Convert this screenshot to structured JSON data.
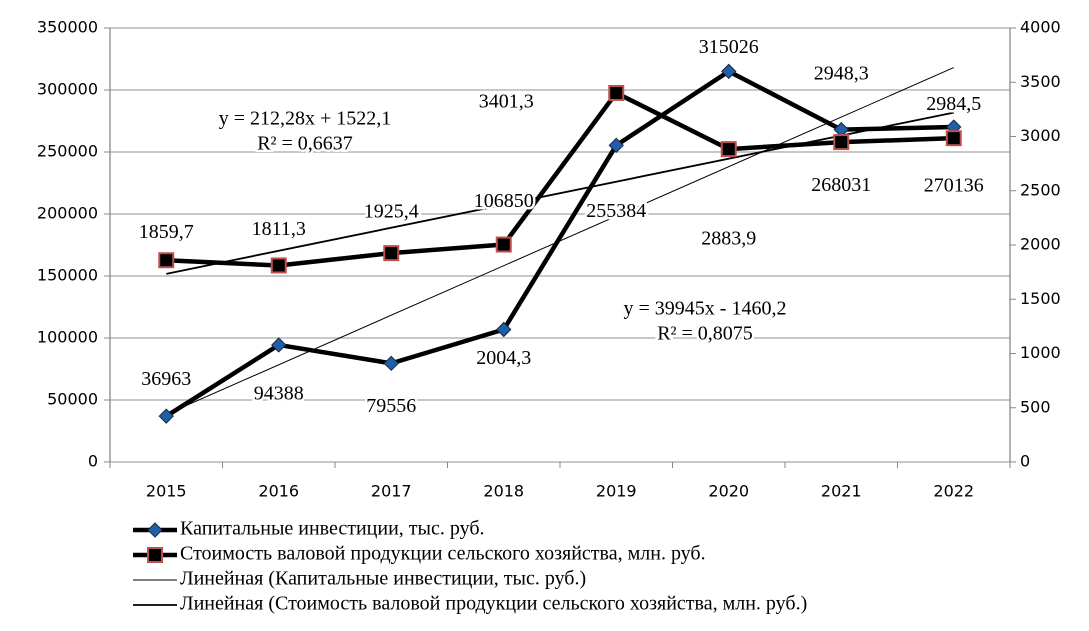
{
  "chart_data": {
    "type": "line",
    "categories": [
      "2015",
      "2016",
      "2017",
      "2018",
      "2019",
      "2020",
      "2021",
      "2022"
    ],
    "series": [
      {
        "name": "Капитальные инвестиции, тыс. руб.",
        "color": "#000000",
        "marker_color": "#1f5fa8",
        "marker": "diamond",
        "values": [
          36963,
          94388,
          79556,
          106850,
          255384,
          315026,
          268031,
          270136
        ]
      },
      {
        "name": "Стоимость валовой продукции сельского хозяйства, млн. руб.",
        "color": "#000000",
        "marker_color": "#c0504d",
        "marker": "square",
        "axis": "y2",
        "values": [
          1859.7,
          1811.3,
          1925.4,
          2004.3,
          3401.3,
          2883.9,
          2948.3,
          2984.5
        ],
        "value_labels": [
          "1859,7",
          "1811,3",
          "1925,4",
          "2004,3",
          "3401,3",
          "2883,9",
          "2948,3",
          "2984,5"
        ]
      }
    ],
    "trendlines": [
      {
        "name": "Линейная (Капитальные инвестиции, тыс. руб.)",
        "slope": 39945,
        "intercept": -1460.2,
        "equation": "y = 39945x - 1460,2",
        "r_squared": "R² = 0,8075"
      },
      {
        "name": "Линейная (Стоимость валовой продукции сельского хозяйства, млн. руб.)",
        "axis": "y2",
        "slope": 212.28,
        "intercept": 1522.1,
        "equation": "y = 212,28x + 1522,1",
        "r_squared": "R² = 0,6637"
      }
    ],
    "ylim": [
      0,
      350000
    ],
    "yticks": [
      0,
      50000,
      100000,
      150000,
      200000,
      250000,
      300000,
      350000
    ],
    "y2lim": [
      0,
      4000
    ],
    "y2ticks": [
      0,
      500,
      1000,
      1500,
      2000,
      2500,
      3000,
      3500,
      4000
    ],
    "grid": true,
    "legend": "bottom"
  }
}
